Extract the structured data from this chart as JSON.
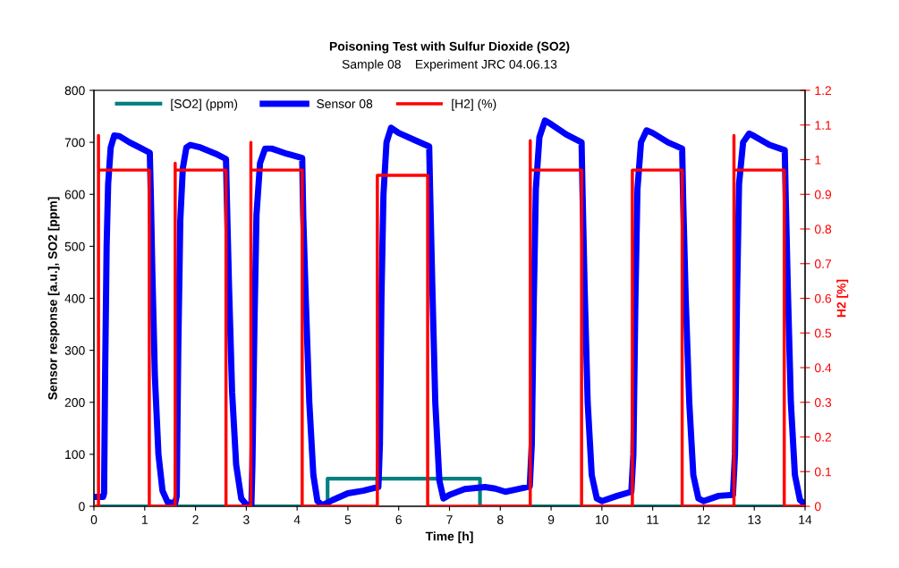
{
  "chart_data": {
    "type": "line",
    "title": "Poisoning Test with Sulfur Dioxide (SO2)",
    "subtitle": "Sample 08    Experiment JRC 04.06.13",
    "xlabel": "Time [h]",
    "ylabel": "Sensor response [a.u.], SO2 [ppm]",
    "y2label": "H2 [%]",
    "xlim": [
      0,
      14
    ],
    "xticks": [
      0,
      1,
      2,
      3,
      4,
      5,
      6,
      7,
      8,
      9,
      10,
      11,
      12,
      13,
      14
    ],
    "ylim": [
      0,
      800
    ],
    "yticks": [
      0,
      100,
      200,
      300,
      400,
      500,
      600,
      700,
      800
    ],
    "y2lim": [
      0,
      1.2
    ],
    "y2ticks": [
      0,
      0.1,
      0.2,
      0.3,
      0.4,
      0.5,
      0.6,
      0.7,
      0.8,
      0.9,
      1,
      1.1,
      1.2
    ],
    "grid": false,
    "legend": "top left",
    "marker": "none",
    "line_style": "solid",
    "series": [
      {
        "name": "[SO2] (ppm)",
        "color": "#008080",
        "x": [
          0,
          4.6,
          4.6,
          7.6,
          7.6,
          14
        ],
        "values": [
          0,
          0,
          53,
          53,
          0,
          0
        ]
      },
      {
        "name": "Sensor 08",
        "color": "#0000ff",
        "x": [
          0,
          0.18,
          0.2,
          0.22,
          0.25,
          0.28,
          0.33,
          0.4,
          0.5,
          0.7,
          0.9,
          1.1,
          1.12,
          1.15,
          1.2,
          1.27,
          1.35,
          1.45,
          1.6,
          1.63,
          1.66,
          1.7,
          1.75,
          1.82,
          1.9,
          2.1,
          2.4,
          2.6,
          2.62,
          2.66,
          2.72,
          2.8,
          2.9,
          3.0,
          3.1,
          3.12,
          3.16,
          3.2,
          3.27,
          3.37,
          3.5,
          3.8,
          4.1,
          4.12,
          4.17,
          4.24,
          4.32,
          4.4,
          4.5,
          4.7,
          5.0,
          5.3,
          5.6,
          5.63,
          5.66,
          5.7,
          5.76,
          5.85,
          6.0,
          6.3,
          6.6,
          6.62,
          6.66,
          6.72,
          6.8,
          6.88,
          7.0,
          7.3,
          7.7,
          7.9,
          8.1,
          8.3,
          8.58,
          8.62,
          8.66,
          8.7,
          8.77,
          8.88,
          9.0,
          9.3,
          9.6,
          9.62,
          9.66,
          9.72,
          9.8,
          9.9,
          10.0,
          10.3,
          10.58,
          10.62,
          10.66,
          10.7,
          10.77,
          10.88,
          11.0,
          11.3,
          11.58,
          11.6,
          11.65,
          11.72,
          11.8,
          11.9,
          12.0,
          12.3,
          12.58,
          12.62,
          12.66,
          12.7,
          12.78,
          12.9,
          13.0,
          13.3,
          13.6,
          13.62,
          13.66,
          13.72,
          13.8,
          13.9,
          14.0
        ],
        "values": [
          18,
          18,
          25,
          250,
          500,
          620,
          690,
          713,
          712,
          700,
          690,
          680,
          600,
          450,
          250,
          100,
          30,
          8,
          6,
          20,
          300,
          550,
          650,
          690,
          695,
          690,
          678,
          668,
          580,
          420,
          220,
          80,
          15,
          3,
          3,
          80,
          350,
          560,
          660,
          688,
          688,
          678,
          670,
          560,
          400,
          200,
          60,
          10,
          2,
          12,
          25,
          30,
          37,
          120,
          400,
          600,
          700,
          728,
          718,
          705,
          692,
          600,
          430,
          200,
          50,
          15,
          22,
          33,
          37,
          34,
          28,
          32,
          38,
          120,
          400,
          610,
          710,
          742,
          735,
          715,
          700,
          600,
          420,
          200,
          60,
          15,
          10,
          20,
          28,
          100,
          400,
          610,
          700,
          723,
          718,
          700,
          688,
          590,
          400,
          200,
          60,
          15,
          10,
          20,
          22,
          100,
          400,
          620,
          700,
          717,
          712,
          695,
          685,
          590,
          420,
          200,
          60,
          12,
          4
        ]
      },
      {
        "name": "[H2] (%)",
        "color": "#ff0000",
        "axis": "y2",
        "x": [
          0,
          0.09,
          0.09,
          0.09,
          1.09,
          1.09,
          1.6,
          1.6,
          1.6,
          2.6,
          2.6,
          3.09,
          3.09,
          3.09,
          4.1,
          4.1,
          5.58,
          5.58,
          6.57,
          6.57,
          8.59,
          8.59,
          8.59,
          9.6,
          9.6,
          10.6,
          10.6,
          11.58,
          11.58,
          12.6,
          12.6,
          12.6,
          13.59,
          13.59,
          14
        ],
        "values": [
          0,
          0,
          1.07,
          0.97,
          0.97,
          0,
          0,
          0.99,
          0.97,
          0.97,
          0,
          0,
          1.05,
          0.97,
          0.97,
          0,
          0,
          0.955,
          0.955,
          0,
          0,
          1.055,
          0.97,
          0.97,
          0,
          0,
          0.97,
          0.97,
          0,
          0,
          1.07,
          0.97,
          0.97,
          0,
          0
        ]
      }
    ]
  }
}
